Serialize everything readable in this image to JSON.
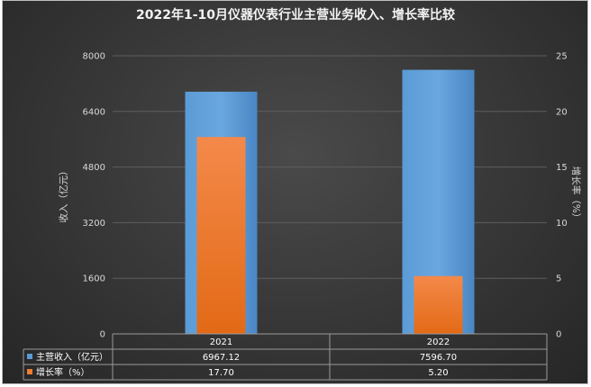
{
  "chart_data": {
    "type": "bar",
    "title": "2022年1-10月仪器仪表行业主营业务收入、增长率比较",
    "categories": [
      "2021",
      "2022"
    ],
    "ylabel": "收入（亿元）",
    "y2label": "增长率（%）",
    "ylim": [
      0,
      8000
    ],
    "y2lim": [
      0,
      25
    ],
    "yticks": [
      "8000",
      "6400",
      "4800",
      "3200",
      "1600",
      "0"
    ],
    "y2ticks": [
      "25",
      "20",
      "15",
      "10",
      "5",
      "0"
    ],
    "series": [
      {
        "name": "主营收入（亿元）",
        "axis": "left",
        "color": "#5b9bd5",
        "values": [
          6967.12,
          7596.7
        ],
        "labels": [
          "6967.12",
          "7596.70"
        ]
      },
      {
        "name": "增长率（%）",
        "axis": "right",
        "color": "#ed7d31",
        "values": [
          17.7,
          5.2
        ],
        "labels": [
          "17.70",
          "5.20"
        ]
      }
    ],
    "grid": true,
    "legend": "data-table"
  }
}
